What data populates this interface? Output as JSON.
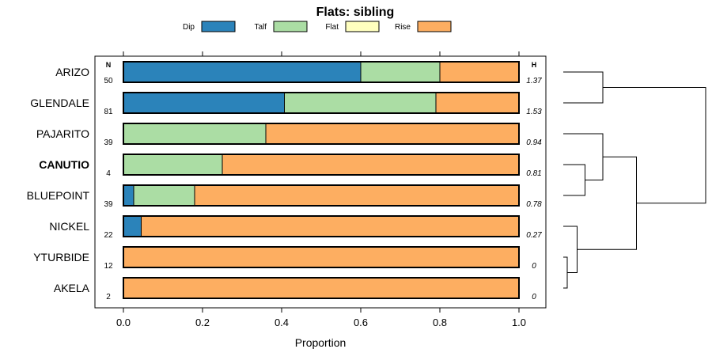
{
  "chart_data": {
    "type": "bar",
    "stacked": true,
    "orientation": "horizontal",
    "title": "Flats: sibling",
    "xlabel": "Proportion",
    "xlim": [
      0,
      1
    ],
    "xticks": [
      0,
      0.2,
      0.4,
      0.6,
      0.8,
      1
    ],
    "xtick_labels": [
      "0.0",
      "0.2",
      "0.4",
      "0.6",
      "0.8",
      "1.0"
    ],
    "n_header": "N",
    "h_header": "H",
    "legend_position": "top",
    "series": [
      {
        "name": "Dip",
        "color": "#2b83ba",
        "values": [
          0.6,
          0.407,
          0,
          0,
          0.026,
          0.045,
          0,
          0
        ]
      },
      {
        "name": "Talf",
        "color": "#abdda4",
        "values": [
          0.2,
          0.383,
          0.36,
          0.25,
          0.154,
          0,
          0,
          0
        ]
      },
      {
        "name": "Flat",
        "color": "#ffffbf",
        "values": [
          0,
          0,
          0,
          0,
          0,
          0,
          0,
          0
        ]
      },
      {
        "name": "Rise",
        "color": "#fdae61",
        "values": [
          0.2,
          0.21,
          0.64,
          0.75,
          0.82,
          0.955,
          1,
          1
        ]
      }
    ],
    "categories": [
      "ARIZO",
      "GLENDALE",
      "PAJARITO",
      "CANUTIO",
      "BLUEPOINT",
      "NICKEL",
      "YTURBIDE",
      "AKELA"
    ],
    "highlighted_category": "CANUTIO",
    "N": [
      "50",
      "81",
      "39",
      "4",
      "39",
      "22",
      "12",
      "2"
    ],
    "H": [
      "1.37",
      "1.53",
      "0.94",
      "0.81",
      "0.78",
      "0.27",
      "0",
      "0"
    ],
    "dendrogram": {
      "leaves": [
        "ARIZO",
        "GLENDALE",
        "PAJARITO",
        "CANUTIO",
        "BLUEPOINT",
        "NICKEL",
        "YTURBIDE",
        "AKELA"
      ],
      "merges": [
        {
          "left": "YTURBIDE",
          "right": "AKELA",
          "height": 0.02
        },
        {
          "left": "merge:0",
          "right": "NICKEL",
          "height": 0.07
        },
        {
          "left": "CANUTIO",
          "right": "BLUEPOINT",
          "height": 0.11
        },
        {
          "left": "PAJARITO",
          "right": "merge:2",
          "height": 0.2
        },
        {
          "left": "merge:1",
          "right": "merge:3",
          "height": 0.37
        },
        {
          "left": "ARIZO",
          "right": "GLENDALE",
          "height": 0.2
        },
        {
          "left": "merge:5",
          "right": "merge:4",
          "height": 0.72
        }
      ]
    }
  }
}
